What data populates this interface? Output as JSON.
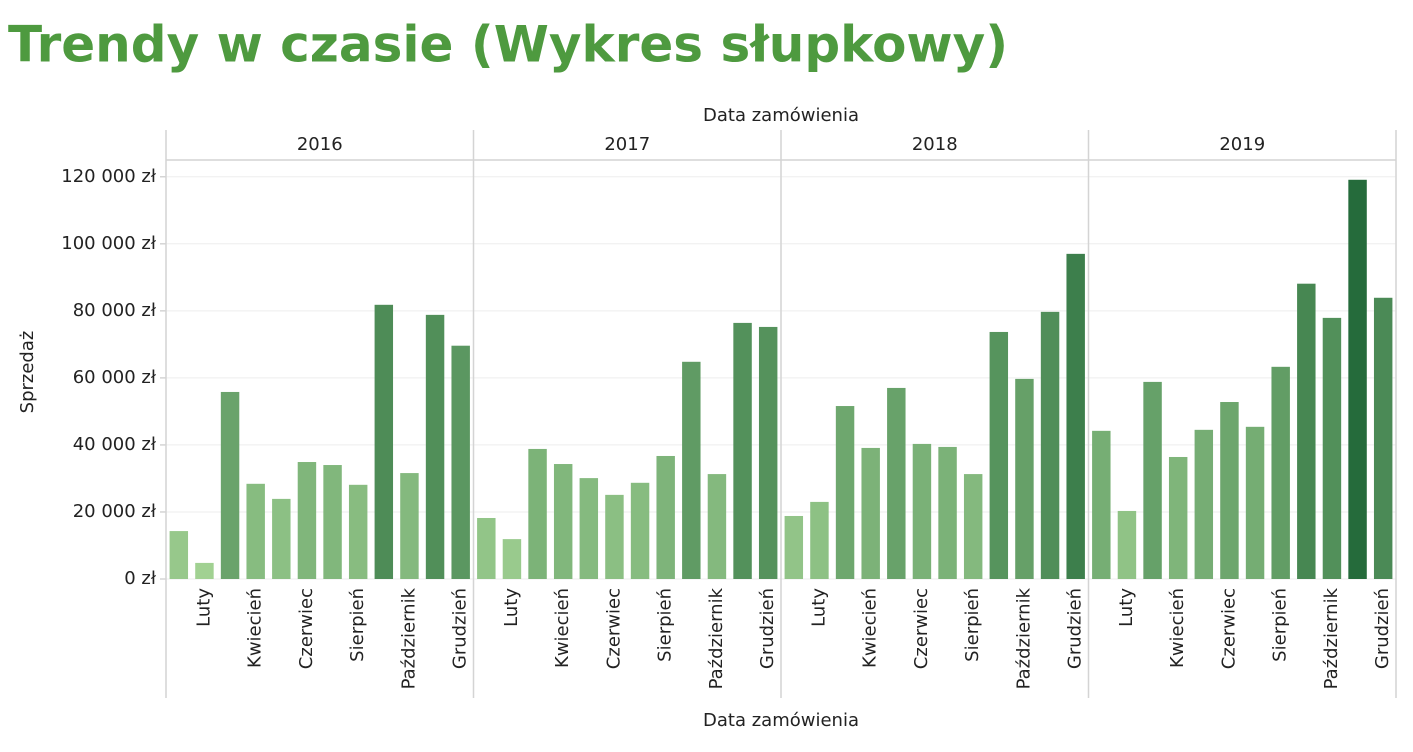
{
  "chart_data": {
    "type": "bar",
    "title": "Trendy w czasie (Wykres słupkowy)",
    "x_label_top": "Data zamówienia",
    "x_label": "Data zamówienia",
    "y_label": "Sprzedaż",
    "categories": [
      null,
      "Luty",
      null,
      "Kwiecień",
      null,
      "Czerwiec",
      null,
      "Sierpień",
      null,
      "Październik",
      null,
      "Grudzień"
    ],
    "panels": [
      {
        "name": "2016",
        "values": [
          14300,
          4800,
          55800,
          28400,
          23900,
          34900,
          34000,
          28100,
          81800,
          31600,
          78800,
          69600
        ]
      },
      {
        "name": "2017",
        "values": [
          18200,
          11900,
          38800,
          34300,
          30100,
          25100,
          28700,
          36700,
          64800,
          31300,
          76400,
          75200
        ]
      },
      {
        "name": "2018",
        "values": [
          18800,
          23000,
          51600,
          39100,
          57000,
          40300,
          39400,
          31300,
          73700,
          59700,
          79700,
          97000
        ]
      },
      {
        "name": "2019",
        "values": [
          44200,
          20300,
          58800,
          36400,
          44500,
          52800,
          45400,
          63300,
          88100,
          77900,
          119100,
          83900
        ]
      }
    ],
    "color_range": [
      "#a6d596",
      "#1f6636"
    ],
    "ylim": [
      0,
      125000
    ],
    "yticks": [
      {
        "value": 0,
        "label": "0 zł"
      },
      {
        "value": 20000,
        "label": "20 000 zł"
      },
      {
        "value": 40000,
        "label": "40 000 zł"
      },
      {
        "value": 60000,
        "label": "60 000 zł"
      },
      {
        "value": 80000,
        "label": "80 000 zł"
      },
      {
        "value": 100000,
        "label": "100 000 zł"
      },
      {
        "value": 120000,
        "label": "120 000 zł"
      }
    ],
    "grid": true
  }
}
